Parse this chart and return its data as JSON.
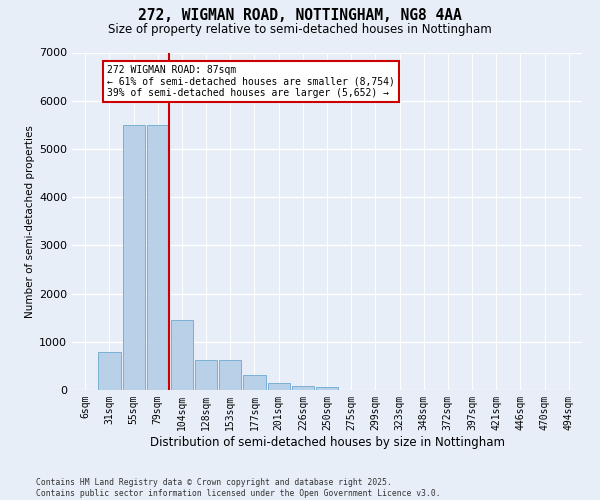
{
  "title": "272, WIGMAN ROAD, NOTTINGHAM, NG8 4AA",
  "subtitle": "Size of property relative to semi-detached houses in Nottingham",
  "xlabel": "Distribution of semi-detached houses by size in Nottingham",
  "ylabel": "Number of semi-detached properties",
  "property_label": "272 WIGMAN ROAD: 87sqm",
  "pct_smaller": "61% of semi-detached houses are smaller (8,754)",
  "pct_larger": "39% of semi-detached houses are larger (5,652)",
  "bins": [
    "6sqm",
    "31sqm",
    "55sqm",
    "79sqm",
    "104sqm",
    "128sqm",
    "153sqm",
    "177sqm",
    "201sqm",
    "226sqm",
    "250sqm",
    "275sqm",
    "299sqm",
    "323sqm",
    "348sqm",
    "372sqm",
    "397sqm",
    "421sqm",
    "446sqm",
    "470sqm",
    "494sqm"
  ],
  "values": [
    10,
    780,
    5500,
    5500,
    1450,
    620,
    620,
    320,
    150,
    90,
    70,
    0,
    0,
    0,
    0,
    0,
    0,
    0,
    0,
    0,
    0
  ],
  "bar_color": "#b8d0e8",
  "bar_edge_color": "#7aafd4",
  "highlight_bin_index": 3,
  "red_line_color": "#cc0000",
  "annotation_box_color": "#cc0000",
  "background_color": "#e8eef8",
  "grid_color": "#ffffff",
  "ylim": [
    0,
    7000
  ],
  "yticks": [
    0,
    1000,
    2000,
    3000,
    4000,
    5000,
    6000,
    7000
  ],
  "footer": "Contains HM Land Registry data © Crown copyright and database right 2025.\nContains public sector information licensed under the Open Government Licence v3.0."
}
